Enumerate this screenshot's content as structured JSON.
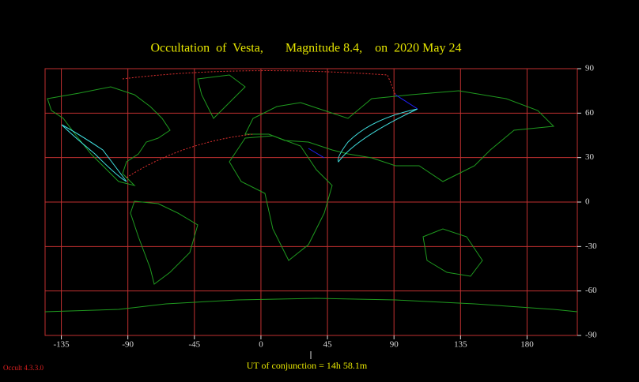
{
  "title": "Occultation  of  Vesta,       Magnitude 8.4,    on  2020 May 24",
  "map": {
    "xlim": [
      -146,
      214
    ],
    "ylim": [
      -90,
      90
    ],
    "xticks": [
      -135,
      -90,
      -45,
      0,
      45,
      90,
      135,
      180
    ],
    "yticks": [
      90,
      60,
      30,
      0,
      -30,
      -60,
      -90
    ]
  },
  "footer": "UT of conjunction = 14h 58.1m",
  "version": "Occult 4.3.3.0"
}
